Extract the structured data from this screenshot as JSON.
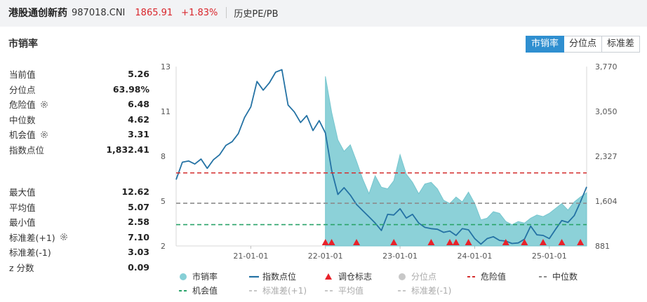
{
  "header": {
    "name": "港股通创新药",
    "code": "987018.CNI",
    "price": "1865.91",
    "change": "+1.83%",
    "link": "历史PE/PB"
  },
  "card": {
    "title": "市销率"
  },
  "tabs": [
    {
      "label": "市销率",
      "active": true
    },
    {
      "label": "分位点",
      "active": false
    },
    {
      "label": "标准差",
      "active": false
    }
  ],
  "stats_top": [
    {
      "key": "当前值",
      "value": "5.26",
      "gear": false
    },
    {
      "key": "分位点",
      "value": "63.98%",
      "gear": false
    },
    {
      "key": "危险值",
      "value": "6.48",
      "gear": true
    },
    {
      "key": "中位数",
      "value": "4.62",
      "gear": false
    },
    {
      "key": "机会值",
      "value": "3.31",
      "gear": true
    },
    {
      "key": "指数点位",
      "value": "1,832.41",
      "gear": false
    }
  ],
  "stats_bottom": [
    {
      "key": "最大值",
      "value": "12.62",
      "gear": false
    },
    {
      "key": "平均值",
      "value": "5.07",
      "gear": false
    },
    {
      "key": "最小值",
      "value": "2.58",
      "gear": false
    },
    {
      "key": "标准差(+1)",
      "value": "7.10",
      "gear": true
    },
    {
      "key": "标准差(-1)",
      "value": "3.03",
      "gear": false
    },
    {
      "key": "z 分数",
      "value": "0.09",
      "gear": false
    }
  ],
  "colors": {
    "accent": "#2f8fd0",
    "ps_fill": "#86cfd6",
    "index_line": "#2472a4",
    "danger": "#d42f2f",
    "median": "#8c8c8c",
    "opportunity": "#2aa36a",
    "marker": "#e8222a"
  },
  "chart_data": {
    "type": "line",
    "x_start": "2020-01",
    "x_end": "2025-07",
    "x_ticks": [
      {
        "label": "21-01-01",
        "date": "2021-01-01"
      },
      {
        "label": "22-01-01",
        "date": "2022-01-01"
      },
      {
        "label": "23-01-01",
        "date": "2023-01-01"
      },
      {
        "label": "24-01-01",
        "date": "2024-01-01"
      },
      {
        "label": "25-01-01",
        "date": "2025-01-01"
      }
    ],
    "y_left": {
      "ticks": [
        "13",
        "11",
        "8",
        "5",
        "2"
      ],
      "ylim": [
        2,
        13
      ]
    },
    "y_right": {
      "ticks": [
        "3,770",
        "3,050",
        "2,327",
        "1,604",
        "881"
      ],
      "ylim": [
        881,
        3770
      ]
    },
    "ps_series": {
      "name": "市销率",
      "start": "2022-01",
      "x": [
        "2022-01",
        "2022-02",
        "2022-03",
        "2022-04",
        "2022-05",
        "2022-06",
        "2022-07",
        "2022-08",
        "2022-09",
        "2022-10",
        "2022-11",
        "2022-12",
        "2023-01",
        "2023-02",
        "2023-03",
        "2023-04",
        "2023-05",
        "2023-06",
        "2023-07",
        "2023-08",
        "2023-09",
        "2023-10",
        "2023-11",
        "2023-12",
        "2024-01",
        "2024-02",
        "2024-03",
        "2024-04",
        "2024-05",
        "2024-06",
        "2024-07",
        "2024-08",
        "2024-09",
        "2024-10",
        "2024-11",
        "2024-12",
        "2025-01",
        "2025-02",
        "2025-03",
        "2025-04",
        "2025-05",
        "2025-06",
        "2025-07"
      ],
      "values": [
        12.4,
        10.2,
        8.5,
        7.8,
        8.2,
        7.2,
        6.1,
        5.2,
        6.3,
        5.6,
        5.5,
        6.0,
        7.6,
        6.4,
        5.9,
        5.2,
        5.8,
        5.9,
        5.5,
        4.8,
        4.6,
        5.0,
        4.7,
        5.3,
        4.6,
        3.6,
        3.7,
        4.1,
        4.0,
        3.5,
        3.3,
        3.5,
        3.4,
        3.7,
        3.9,
        3.8,
        4.0,
        4.3,
        4.6,
        4.2,
        4.7,
        5.0,
        5.26
      ]
    },
    "index_series": {
      "name": "指数点位",
      "x": [
        "2020-01",
        "2020-02",
        "2020-03",
        "2020-04",
        "2020-05",
        "2020-06",
        "2020-07",
        "2020-08",
        "2020-09",
        "2020-10",
        "2020-11",
        "2020-12",
        "2021-01",
        "2021-02",
        "2021-03",
        "2021-04",
        "2021-05",
        "2021-06",
        "2021-07",
        "2021-08",
        "2021-09",
        "2021-10",
        "2021-11",
        "2021-12",
        "2022-01",
        "2022-02",
        "2022-03",
        "2022-04",
        "2022-05",
        "2022-06",
        "2022-07",
        "2022-08",
        "2022-09",
        "2022-10",
        "2022-11",
        "2022-12",
        "2023-01",
        "2023-02",
        "2023-03",
        "2023-04",
        "2023-05",
        "2023-06",
        "2023-07",
        "2023-08",
        "2023-09",
        "2023-10",
        "2023-11",
        "2023-12",
        "2024-01",
        "2024-02",
        "2024-03",
        "2024-04",
        "2024-05",
        "2024-06",
        "2024-07",
        "2024-08",
        "2024-09",
        "2024-10",
        "2024-11",
        "2024-12",
        "2025-01",
        "2025-02",
        "2025-03",
        "2025-04",
        "2025-05",
        "2025-06",
        "2025-07"
      ],
      "values": [
        1950,
        2230,
        2250,
        2200,
        2280,
        2130,
        2270,
        2350,
        2500,
        2560,
        2690,
        2950,
        3120,
        3530,
        3390,
        3510,
        3680,
        3720,
        3150,
        3040,
        2870,
        2980,
        2740,
        2900,
        2700,
        2100,
        1710,
        1820,
        1700,
        1550,
        1450,
        1350,
        1250,
        1130,
        1390,
        1380,
        1480,
        1330,
        1390,
        1250,
        1180,
        1160,
        1150,
        1100,
        1120,
        1050,
        1160,
        1140,
        1000,
        910,
        1000,
        1030,
        970,
        960,
        920,
        930,
        990,
        1200,
        1060,
        1050,
        1000,
        1150,
        1290,
        1260,
        1370,
        1590,
        1832
      ]
    },
    "markers": {
      "name": "调仓标志",
      "dates": [
        "2022-01",
        "2022-02",
        "2022-06",
        "2022-12",
        "2023-06",
        "2023-09",
        "2023-10",
        "2023-12",
        "2024-06",
        "2024-09",
        "2024-12",
        "2025-03",
        "2025-06"
      ]
    },
    "ref_lines": [
      {
        "name": "危险值",
        "value": 6.48
      },
      {
        "name": "中位数",
        "value": 4.62
      },
      {
        "name": "机会值",
        "value": 3.31
      }
    ],
    "legend": [
      {
        "label": "市销率",
        "kind": "circle",
        "color": "#86cfd6",
        "dim": false
      },
      {
        "label": "指数点位",
        "kind": "line",
        "color": "#2472a4",
        "dim": false
      },
      {
        "label": "调仓标志",
        "kind": "triangle",
        "color": "#e8222a",
        "dim": false
      },
      {
        "label": "分位点",
        "kind": "circle",
        "color": "#c8c8c8",
        "dim": true
      },
      {
        "label": "危险值",
        "kind": "dash",
        "color": "#d42f2f",
        "dim": false
      },
      {
        "label": "中位数",
        "kind": "dash",
        "color": "#8c8c8c",
        "dim": false
      },
      {
        "label": "机会值",
        "kind": "dash",
        "color": "#2aa36a",
        "dim": false
      },
      {
        "label": "标准差(+1)",
        "kind": "dash",
        "color": "#c8c8c8",
        "dim": true
      },
      {
        "label": "平均值",
        "kind": "dash",
        "color": "#c8c8c8",
        "dim": true
      },
      {
        "label": "标准差(-1)",
        "kind": "dash",
        "color": "#c8c8c8",
        "dim": true
      }
    ]
  }
}
